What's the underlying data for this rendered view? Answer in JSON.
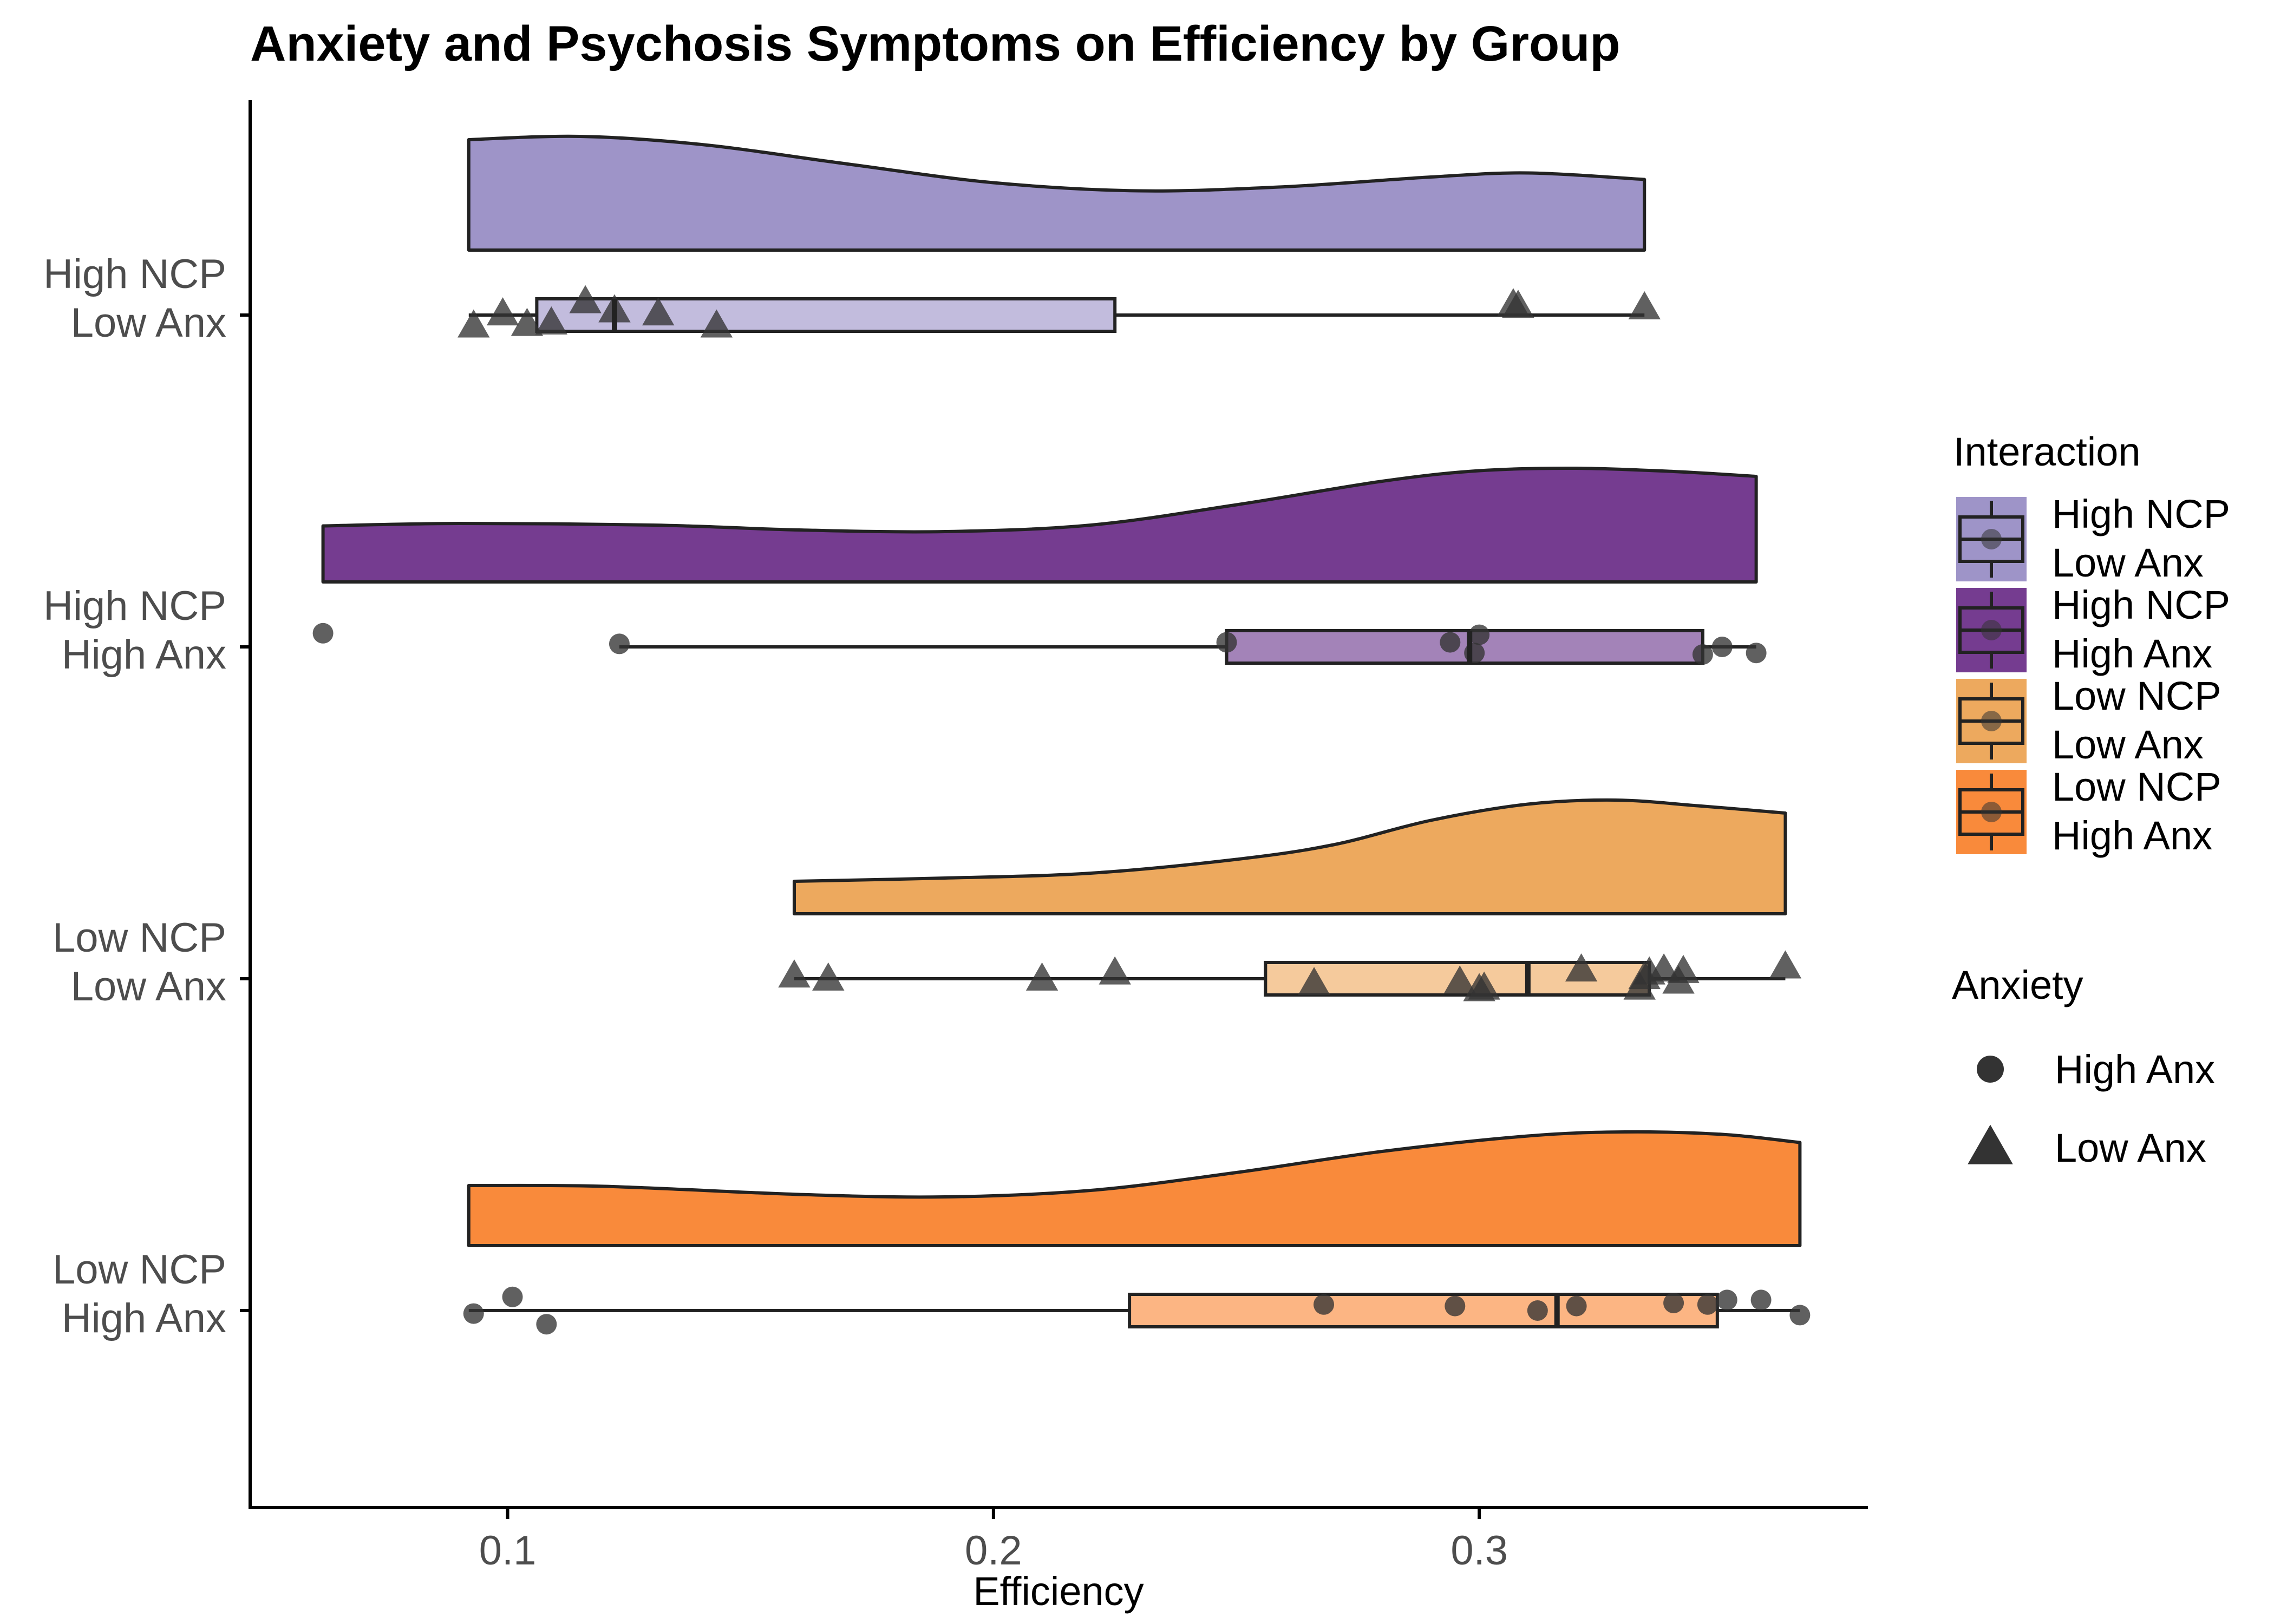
{
  "chart_data": {
    "type": "raincloud",
    "title": "Anxiety and Psychosis Symptoms on Efficiency by Group",
    "xlabel": "Efficiency",
    "ylabel": "",
    "xlim": [
      0.047,
      0.38
    ],
    "x_ticks": [
      0.1,
      0.2,
      0.3
    ],
    "x_tick_labels": [
      "0.1",
      "0.2",
      "0.3"
    ],
    "grid": false,
    "legend_position": "right",
    "groups": [
      {
        "label_line1": "High NCP",
        "label_line2": "Low Anx",
        "fill": "#9e94c8",
        "box_fill": "#c2bcdd",
        "density": [
          [
            0.092,
            0.96
          ],
          [
            0.115,
            1.0
          ],
          [
            0.14,
            0.9
          ],
          [
            0.17,
            0.66
          ],
          [
            0.2,
            0.43
          ],
          [
            0.23,
            0.33
          ],
          [
            0.26,
            0.38
          ],
          [
            0.29,
            0.5
          ],
          [
            0.31,
            0.55
          ],
          [
            0.334,
            0.47
          ]
        ],
        "box": {
          "min": 0.092,
          "q1": 0.106,
          "median": 0.122,
          "q3": 0.225,
          "max": 0.334
        },
        "points": [
          {
            "x": 0.093,
            "shape": "triangle",
            "jitter": 0.35
          },
          {
            "x": 0.099,
            "shape": "triangle",
            "jitter": -0.05
          },
          {
            "x": 0.104,
            "shape": "triangle",
            "jitter": 0.3
          },
          {
            "x": 0.109,
            "shape": "triangle",
            "jitter": 0.25
          },
          {
            "x": 0.116,
            "shape": "triangle",
            "jitter": -0.45
          },
          {
            "x": 0.122,
            "shape": "triangle",
            "jitter": -0.15
          },
          {
            "x": 0.131,
            "shape": "triangle",
            "jitter": -0.05
          },
          {
            "x": 0.143,
            "shape": "triangle",
            "jitter": 0.35
          },
          {
            "x": 0.307,
            "shape": "triangle",
            "jitter": -0.35
          },
          {
            "x": 0.308,
            "shape": "triangle",
            "jitter": -0.3
          },
          {
            "x": 0.334,
            "shape": "triangle",
            "jitter": -0.25
          }
        ]
      },
      {
        "label_line1": "High NCP",
        "label_line2": "High Anx",
        "fill": "#753c90",
        "box_fill": "#a383b8",
        "density": [
          [
            0.062,
            0.29
          ],
          [
            0.09,
            0.32
          ],
          [
            0.13,
            0.3
          ],
          [
            0.16,
            0.24
          ],
          [
            0.19,
            0.22
          ],
          [
            0.22,
            0.3
          ],
          [
            0.25,
            0.55
          ],
          [
            0.28,
            0.84
          ],
          [
            0.3,
            0.97
          ],
          [
            0.32,
            1.0
          ],
          [
            0.34,
            0.96
          ],
          [
            0.357,
            0.9
          ]
        ],
        "box": {
          "min": 0.123,
          "q1": 0.248,
          "median": 0.298,
          "q3": 0.346,
          "max": 0.357
        },
        "points": [
          {
            "x": 0.062,
            "shape": "circle",
            "jitter": -0.45
          },
          {
            "x": 0.123,
            "shape": "circle",
            "jitter": -0.1
          },
          {
            "x": 0.248,
            "shape": "circle",
            "jitter": -0.15
          },
          {
            "x": 0.294,
            "shape": "circle",
            "jitter": -0.15
          },
          {
            "x": 0.299,
            "shape": "circle",
            "jitter": 0.2
          },
          {
            "x": 0.3,
            "shape": "circle",
            "jitter": -0.4
          },
          {
            "x": 0.346,
            "shape": "circle",
            "jitter": 0.25
          },
          {
            "x": 0.35,
            "shape": "circle",
            "jitter": 0.0
          },
          {
            "x": 0.357,
            "shape": "circle",
            "jitter": 0.2
          }
        ]
      },
      {
        "label_line1": "Low NCP",
        "label_line2": "Low Anx",
        "fill": "#eda95e",
        "box_fill": "#f5ca9c",
        "density": [
          [
            0.159,
            0.0
          ],
          [
            0.19,
            0.04
          ],
          [
            0.22,
            0.1
          ],
          [
            0.25,
            0.27
          ],
          [
            0.27,
            0.45
          ],
          [
            0.29,
            0.75
          ],
          [
            0.31,
            0.95
          ],
          [
            0.328,
            1.0
          ],
          [
            0.345,
            0.93
          ],
          [
            0.363,
            0.84
          ]
        ],
        "box": {
          "min": 0.159,
          "q1": 0.256,
          "median": 0.31,
          "q3": 0.335,
          "max": 0.363
        },
        "points": [
          {
            "x": 0.159,
            "shape": "triangle",
            "jitter": -0.1
          },
          {
            "x": 0.166,
            "shape": "triangle",
            "jitter": 0.0
          },
          {
            "x": 0.21,
            "shape": "triangle",
            "jitter": 0.0
          },
          {
            "x": 0.225,
            "shape": "triangle",
            "jitter": -0.2
          },
          {
            "x": 0.266,
            "shape": "triangle",
            "jitter": 0.15
          },
          {
            "x": 0.296,
            "shape": "triangle",
            "jitter": 0.1
          },
          {
            "x": 0.3,
            "shape": "triangle",
            "jitter": 0.35
          },
          {
            "x": 0.301,
            "shape": "triangle",
            "jitter": 0.3
          },
          {
            "x": 0.321,
            "shape": "triangle",
            "jitter": -0.3
          },
          {
            "x": 0.333,
            "shape": "triangle",
            "jitter": 0.3
          },
          {
            "x": 0.334,
            "shape": "triangle",
            "jitter": -0.05
          },
          {
            "x": 0.335,
            "shape": "triangle",
            "jitter": -0.2
          },
          {
            "x": 0.338,
            "shape": "triangle",
            "jitter": -0.3
          },
          {
            "x": 0.341,
            "shape": "triangle",
            "jitter": 0.1
          },
          {
            "x": 0.342,
            "shape": "triangle",
            "jitter": -0.25
          },
          {
            "x": 0.363,
            "shape": "triangle",
            "jitter": -0.4
          }
        ]
      },
      {
        "label_line1": "Low NCP",
        "label_line2": "High Anx",
        "fill": "#f98a3b",
        "box_fill": "#fcb583",
        "density": [
          [
            0.092,
            0.34
          ],
          [
            0.12,
            0.33
          ],
          [
            0.16,
            0.23
          ],
          [
            0.19,
            0.2
          ],
          [
            0.22,
            0.28
          ],
          [
            0.25,
            0.5
          ],
          [
            0.28,
            0.76
          ],
          [
            0.31,
            0.95
          ],
          [
            0.33,
            1.0
          ],
          [
            0.35,
            0.97
          ],
          [
            0.366,
            0.87
          ]
        ],
        "box": {
          "min": 0.092,
          "q1": 0.228,
          "median": 0.316,
          "q3": 0.349,
          "max": 0.366
        },
        "points": [
          {
            "x": 0.093,
            "shape": "circle",
            "jitter": 0.1
          },
          {
            "x": 0.101,
            "shape": "circle",
            "jitter": -0.45
          },
          {
            "x": 0.108,
            "shape": "circle",
            "jitter": 0.45
          },
          {
            "x": 0.268,
            "shape": "circle",
            "jitter": -0.2
          },
          {
            "x": 0.295,
            "shape": "circle",
            "jitter": -0.15
          },
          {
            "x": 0.312,
            "shape": "circle",
            "jitter": 0.0
          },
          {
            "x": 0.32,
            "shape": "circle",
            "jitter": -0.15
          },
          {
            "x": 0.34,
            "shape": "circle",
            "jitter": -0.25
          },
          {
            "x": 0.347,
            "shape": "circle",
            "jitter": -0.2
          },
          {
            "x": 0.351,
            "shape": "circle",
            "jitter": -0.35
          },
          {
            "x": 0.358,
            "shape": "circle",
            "jitter": -0.35
          },
          {
            "x": 0.366,
            "shape": "circle",
            "jitter": 0.15
          }
        ]
      }
    ],
    "legend": {
      "interaction_title": "Interaction",
      "interaction_items": [
        {
          "line1": "High NCP",
          "line2": "Low Anx",
          "fill": "#9e94c8"
        },
        {
          "line1": "High NCP",
          "line2": "High Anx",
          "fill": "#753c90"
        },
        {
          "line1": "Low NCP",
          "line2": "Low Anx",
          "fill": "#eda95e"
        },
        {
          "line1": "Low NCP",
          "line2": "High Anx",
          "fill": "#f98a3b"
        }
      ],
      "anxiety_title": "Anxiety",
      "anxiety_items": [
        {
          "label": "High Anx",
          "shape": "circle"
        },
        {
          "label": "Low Anx",
          "shape": "triangle"
        }
      ]
    },
    "point_color": "#333333",
    "outline_color": "#222222"
  }
}
